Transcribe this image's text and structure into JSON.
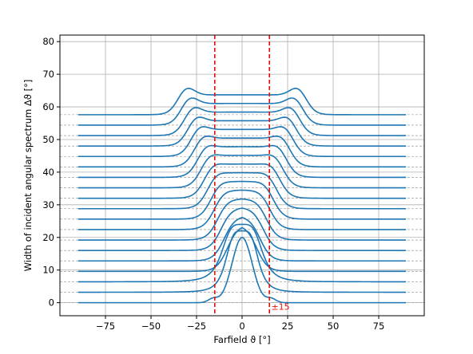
{
  "chart_data": {
    "type": "line",
    "xlabel": "Farfield ϑ [°]",
    "ylabel": "Width of incident angular spectrum Δϑ [°]",
    "xlim": [
      -100,
      100
    ],
    "ylim": [
      -4,
      82
    ],
    "xticks": [
      -75,
      -50,
      -25,
      0,
      25,
      50,
      75
    ],
    "xtick_labels": [
      "−75",
      "−50",
      "−25",
      "0",
      "25",
      "50",
      "75"
    ],
    "yticks": [
      0,
      10,
      20,
      30,
      40,
      50,
      60,
      70,
      80
    ],
    "ytick_labels": [
      "0",
      "10",
      "20",
      "30",
      "40",
      "50",
      "60",
      "70",
      "80"
    ],
    "grid": true,
    "series_color": "#1f77b4",
    "offset_spacing": 3.2,
    "baseline_color": "#888888",
    "x_range": [
      -90,
      90
    ],
    "curve_count": 19,
    "vlines": [
      {
        "x": -15,
        "color": "#e3120b",
        "style": "dashed"
      },
      {
        "x": 15,
        "color": "#e3120b",
        "style": "dashed"
      }
    ],
    "annotation": {
      "text": "±15",
      "x": 16,
      "y": -2.2,
      "color": "#e3120b"
    }
  }
}
